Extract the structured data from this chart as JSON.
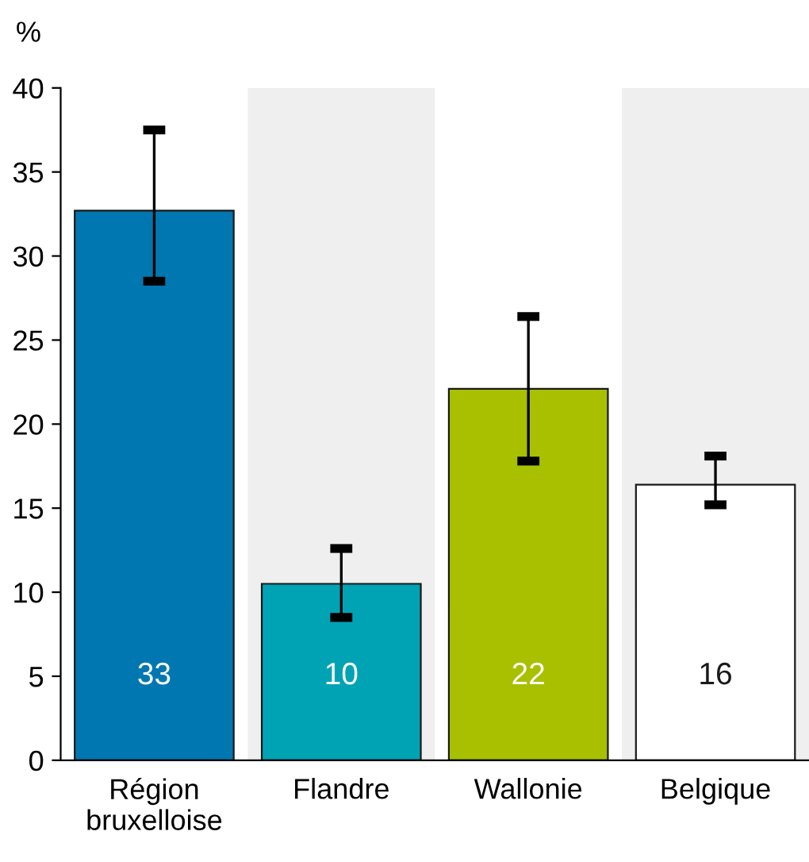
{
  "chart_data": {
    "type": "bar",
    "ylabel": "%",
    "categories": [
      "Région\nbruxelloise",
      "Flandre",
      "Wallonie",
      "Belgique"
    ],
    "values": [
      32.7,
      10.5,
      22.1,
      16.4
    ],
    "colors": [
      "#0077b0",
      "#00a3b4",
      "#a8c000",
      "#ffffff"
    ],
    "errors": [
      [
        28.5,
        37.5
      ],
      [
        8.5,
        12.6
      ],
      [
        17.8,
        26.4
      ],
      [
        15.2,
        18.1
      ]
    ],
    "value_labels": [
      "33",
      "10",
      "22",
      "16"
    ],
    "ylim": [
      0,
      40
    ],
    "yticks": [
      0,
      5,
      10,
      15,
      20,
      25,
      30,
      35,
      40
    ],
    "grid": false,
    "legend": false
  }
}
